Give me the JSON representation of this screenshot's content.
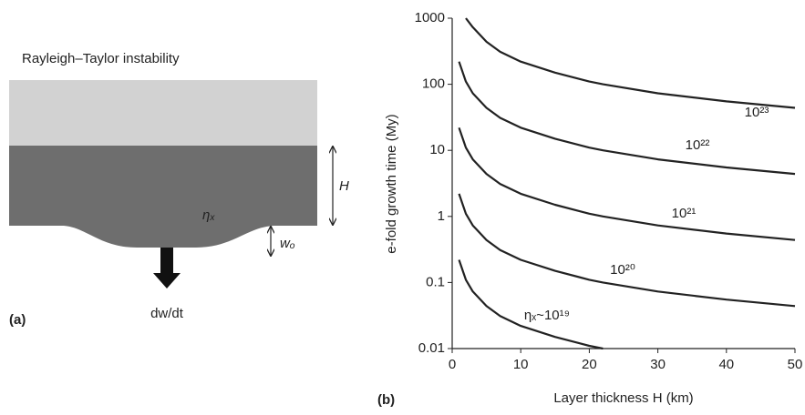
{
  "diagram": {
    "panel_label": "(a)",
    "title": "Rayleigh–Taylor instability",
    "thickness_label": "H",
    "viscosity_label": "ηₓ",
    "deflection_label": "wₒ",
    "rate_label": "dw/dt"
  },
  "chart_data": {
    "type": "line",
    "panel_label": "(b)",
    "x_label": "Layer thickness H (km)",
    "y_label": "e-fold growth time (My)",
    "x": [
      1,
      2,
      3,
      5,
      7,
      10,
      15,
      20,
      22,
      30,
      40,
      50
    ],
    "series": [
      {
        "name": "ηₓ~10¹⁹",
        "color": "#222222",
        "values": [
          0.22,
          0.11,
          0.073,
          0.044,
          0.031,
          0.022,
          0.015,
          0.011,
          0.01,
          null,
          null,
          null
        ]
      },
      {
        "name": "10²⁰",
        "color": "#222222",
        "values": [
          2.2,
          1.1,
          0.73,
          0.44,
          0.31,
          0.22,
          0.15,
          0.11,
          0.1,
          0.073,
          0.055,
          0.044
        ]
      },
      {
        "name": "10²¹",
        "color": "#222222",
        "values": [
          22,
          11,
          7.3,
          4.4,
          3.1,
          2.2,
          1.5,
          1.1,
          1,
          0.73,
          0.55,
          0.44
        ]
      },
      {
        "name": "10²²",
        "color": "#222222",
        "values": [
          220,
          110,
          73,
          44,
          31,
          22,
          15,
          11,
          10,
          7.3,
          5.5,
          4.4
        ]
      },
      {
        "name": "10²³",
        "color": "#222222",
        "values": [
          null,
          1000,
          730,
          440,
          310,
          220,
          150,
          110,
          100,
          73,
          55,
          44
        ]
      }
    ],
    "xlim": [
      0,
      50
    ],
    "xticks": [
      0,
      10,
      20,
      30,
      40,
      50
    ],
    "ylim": [
      0.01,
      1000
    ],
    "yticks": [
      0.01,
      0.1,
      1,
      10,
      100,
      1000
    ],
    "log_y": true
  }
}
